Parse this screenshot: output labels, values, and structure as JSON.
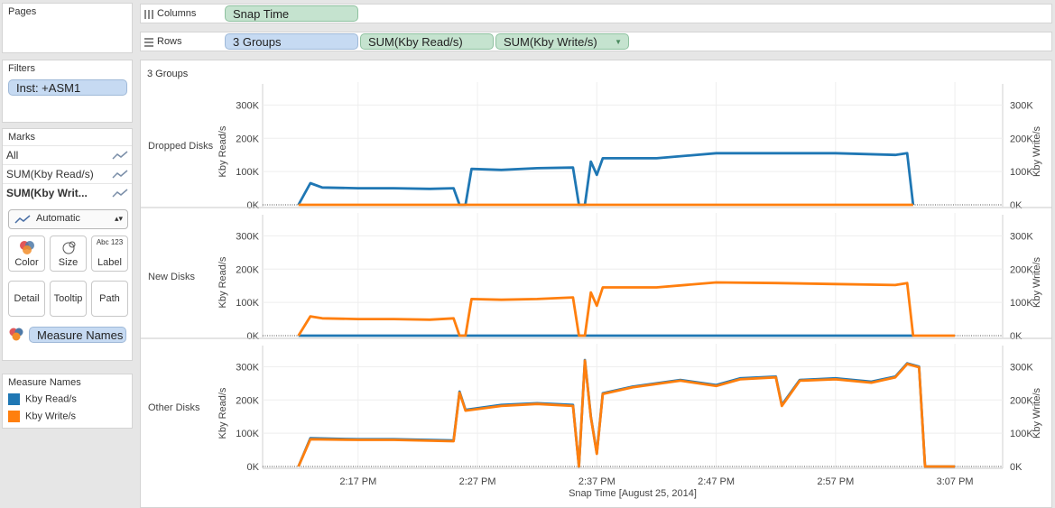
{
  "left_panel": {
    "pages": {
      "title": "Pages"
    },
    "filters": {
      "title": "Filters",
      "pill": "Inst: +ASM1"
    },
    "marks": {
      "title": "Marks",
      "rows": [
        "All",
        "SUM(Kby Read/s)",
        "SUM(Kby Writ..."
      ],
      "mark_type": "Automatic",
      "buttons": [
        "Color",
        "Size",
        "Label",
        "Detail",
        "Tooltip",
        "Path"
      ],
      "label_icon_text": "Abc 123",
      "color_pill": "Measure Names"
    },
    "legend": {
      "title": "Measure Names",
      "items": [
        {
          "label": "Kby Read/s",
          "color": "#1f77b4"
        },
        {
          "label": "Kby Write/s",
          "color": "#ff7f0e"
        }
      ]
    }
  },
  "shelves": {
    "columns": {
      "label": "Columns",
      "pills": [
        "Snap Time"
      ]
    },
    "rows": {
      "label": "Rows",
      "pills": [
        "3 Groups",
        "SUM(Kby Read/s)",
        "SUM(Kby Write/s)"
      ]
    }
  },
  "chart_header": "3 Groups",
  "colors": {
    "read": "#1f77b4",
    "write": "#ff7f0e"
  },
  "chart_data": {
    "type": "line",
    "title": "",
    "xlabel": "Snap Time [August 25, 2014]",
    "x_ticks": [
      "2:17 PM",
      "2:27 PM",
      "2:37 PM",
      "2:47 PM",
      "2:57 PM",
      "3:07 PM"
    ],
    "y_ticks": [
      "0K",
      "100K",
      "200K",
      "300K"
    ],
    "ylim": [
      0,
      320000
    ],
    "ylabel_left": "Kby Read/s",
    "ylabel_right": "Kby Write/s",
    "panels": [
      {
        "group": "Dropped Disks",
        "series": [
          {
            "name": "Kby Read/s",
            "points": [
              [
                "2:12 PM",
                0
              ],
              [
                "2:13 PM",
                65000
              ],
              [
                "2:14 PM",
                52000
              ],
              [
                "2:17 PM",
                50000
              ],
              [
                "2:20 PM",
                50000
              ],
              [
                "2:23 PM",
                48000
              ],
              [
                "2:25 PM",
                50000
              ],
              [
                "2:25:30 PM",
                0
              ],
              [
                "2:26 PM",
                0
              ],
              [
                "2:26:30 PM",
                108000
              ],
              [
                "2:29 PM",
                105000
              ],
              [
                "2:32 PM",
                110000
              ],
              [
                "2:35 PM",
                112000
              ],
              [
                "2:35:30 PM",
                0
              ],
              [
                "2:36 PM",
                0
              ],
              [
                "2:36:30 PM",
                130000
              ],
              [
                "2:37 PM",
                90000
              ],
              [
                "2:37:30 PM",
                140000
              ],
              [
                "2:42 PM",
                140000
              ],
              [
                "2:47 PM",
                155000
              ],
              [
                "2:52 PM",
                155000
              ],
              [
                "2:57 PM",
                155000
              ],
              [
                "3:02 PM",
                150000
              ],
              [
                "3:03 PM",
                155000
              ],
              [
                "3:03:30 PM",
                0
              ]
            ]
          },
          {
            "name": "Kby Write/s",
            "points": [
              [
                "2:12 PM",
                0
              ],
              [
                "3:03:30 PM",
                0
              ]
            ]
          }
        ]
      },
      {
        "group": "New Disks",
        "series": [
          {
            "name": "Kby Read/s",
            "points": [
              [
                "2:12 PM",
                0
              ],
              [
                "3:03:30 PM",
                0
              ]
            ]
          },
          {
            "name": "Kby Write/s",
            "points": [
              [
                "2:12 PM",
                0
              ],
              [
                "2:13 PM",
                58000
              ],
              [
                "2:14 PM",
                52000
              ],
              [
                "2:17 PM",
                50000
              ],
              [
                "2:20 PM",
                50000
              ],
              [
                "2:23 PM",
                48000
              ],
              [
                "2:25 PM",
                52000
              ],
              [
                "2:25:30 PM",
                0
              ],
              [
                "2:26 PM",
                0
              ],
              [
                "2:26:30 PM",
                110000
              ],
              [
                "2:29 PM",
                108000
              ],
              [
                "2:32 PM",
                110000
              ],
              [
                "2:35 PM",
                115000
              ],
              [
                "2:35:30 PM",
                0
              ],
              [
                "2:36 PM",
                0
              ],
              [
                "2:36:30 PM",
                130000
              ],
              [
                "2:37 PM",
                90000
              ],
              [
                "2:37:30 PM",
                145000
              ],
              [
                "2:42 PM",
                145000
              ],
              [
                "2:47 PM",
                160000
              ],
              [
                "2:52 PM",
                158000
              ],
              [
                "2:57 PM",
                155000
              ],
              [
                "3:02 PM",
                152000
              ],
              [
                "3:03 PM",
                158000
              ],
              [
                "3:03:30 PM",
                0
              ],
              [
                "3:07 PM",
                0
              ]
            ]
          }
        ]
      },
      {
        "group": "Other Disks",
        "series": [
          {
            "name": "Kby Read/s",
            "points": [
              [
                "2:12 PM",
                0
              ],
              [
                "2:13 PM",
                85000
              ],
              [
                "2:17 PM",
                82000
              ],
              [
                "2:20 PM",
                82000
              ],
              [
                "2:25 PM",
                78000
              ],
              [
                "2:25:30 PM",
                225000
              ],
              [
                "2:26 PM",
                170000
              ],
              [
                "2:29 PM",
                185000
              ],
              [
                "2:32 PM",
                190000
              ],
              [
                "2:35 PM",
                185000
              ],
              [
                "2:35:30 PM",
                0
              ],
              [
                "2:36 PM",
                320000
              ],
              [
                "2:36:30 PM",
                150000
              ],
              [
                "2:37 PM",
                40000
              ],
              [
                "2:37:30 PM",
                220000
              ],
              [
                "2:40 PM",
                240000
              ],
              [
                "2:44 PM",
                260000
              ],
              [
                "2:47 PM",
                245000
              ],
              [
                "2:49 PM",
                265000
              ],
              [
                "2:52 PM",
                270000
              ],
              [
                "2:52:30 PM",
                185000
              ],
              [
                "2:54 PM",
                260000
              ],
              [
                "2:57 PM",
                265000
              ],
              [
                "3:00 PM",
                255000
              ],
              [
                "3:02 PM",
                270000
              ],
              [
                "3:03 PM",
                310000
              ],
              [
                "3:04 PM",
                300000
              ],
              [
                "3:04:30 PM",
                0
              ],
              [
                "3:07 PM",
                0
              ]
            ]
          },
          {
            "name": "Kby Write/s",
            "points": [
              [
                "2:12 PM",
                0
              ],
              [
                "2:13 PM",
                82000
              ],
              [
                "2:17 PM",
                80000
              ],
              [
                "2:20 PM",
                80000
              ],
              [
                "2:25 PM",
                76000
              ],
              [
                "2:25:30 PM",
                222000
              ],
              [
                "2:26 PM",
                168000
              ],
              [
                "2:29 PM",
                182000
              ],
              [
                "2:32 PM",
                188000
              ],
              [
                "2:35 PM",
                182000
              ],
              [
                "2:35:30 PM",
                0
              ],
              [
                "2:36 PM",
                318000
              ],
              [
                "2:36:30 PM",
                148000
              ],
              [
                "2:37 PM",
                38000
              ],
              [
                "2:37:30 PM",
                218000
              ],
              [
                "2:40 PM",
                238000
              ],
              [
                "2:44 PM",
                258000
              ],
              [
                "2:47 PM",
                242000
              ],
              [
                "2:49 PM",
                262000
              ],
              [
                "2:52 PM",
                268000
              ],
              [
                "2:52:30 PM",
                182000
              ],
              [
                "2:54 PM",
                258000
              ],
              [
                "2:57 PM",
                262000
              ],
              [
                "3:00 PM",
                252000
              ],
              [
                "3:02 PM",
                268000
              ],
              [
                "3:03 PM",
                308000
              ],
              [
                "3:04 PM",
                298000
              ],
              [
                "3:04:30 PM",
                0
              ],
              [
                "3:07 PM",
                0
              ]
            ]
          }
        ]
      }
    ],
    "x_axis_range": [
      "2:09 PM",
      "3:11 PM"
    ],
    "grid": true,
    "legend_placement": "left-panel"
  }
}
